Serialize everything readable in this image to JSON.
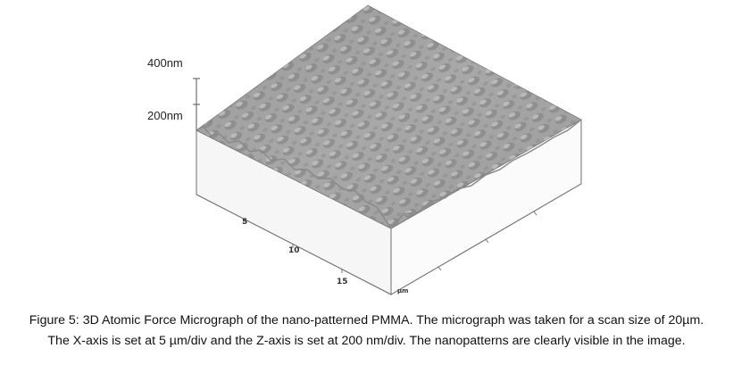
{
  "figure": {
    "z_axis": {
      "labels": [
        "400nm",
        "200nm"
      ]
    },
    "x_axis": {
      "ticks": [
        "5",
        "10",
        "15"
      ],
      "unit": "µm"
    }
  },
  "caption": {
    "line1": "Figure 5: 3D Atomic Force Micrograph of the nano-patterned PMMA. The micrograph was taken for a scan size of 20µm.",
    "line2": "The X-axis is set at 5 µm/div and the Z-axis is set at 200 nm/div. The nanopatterns are clearly visible in the image."
  }
}
